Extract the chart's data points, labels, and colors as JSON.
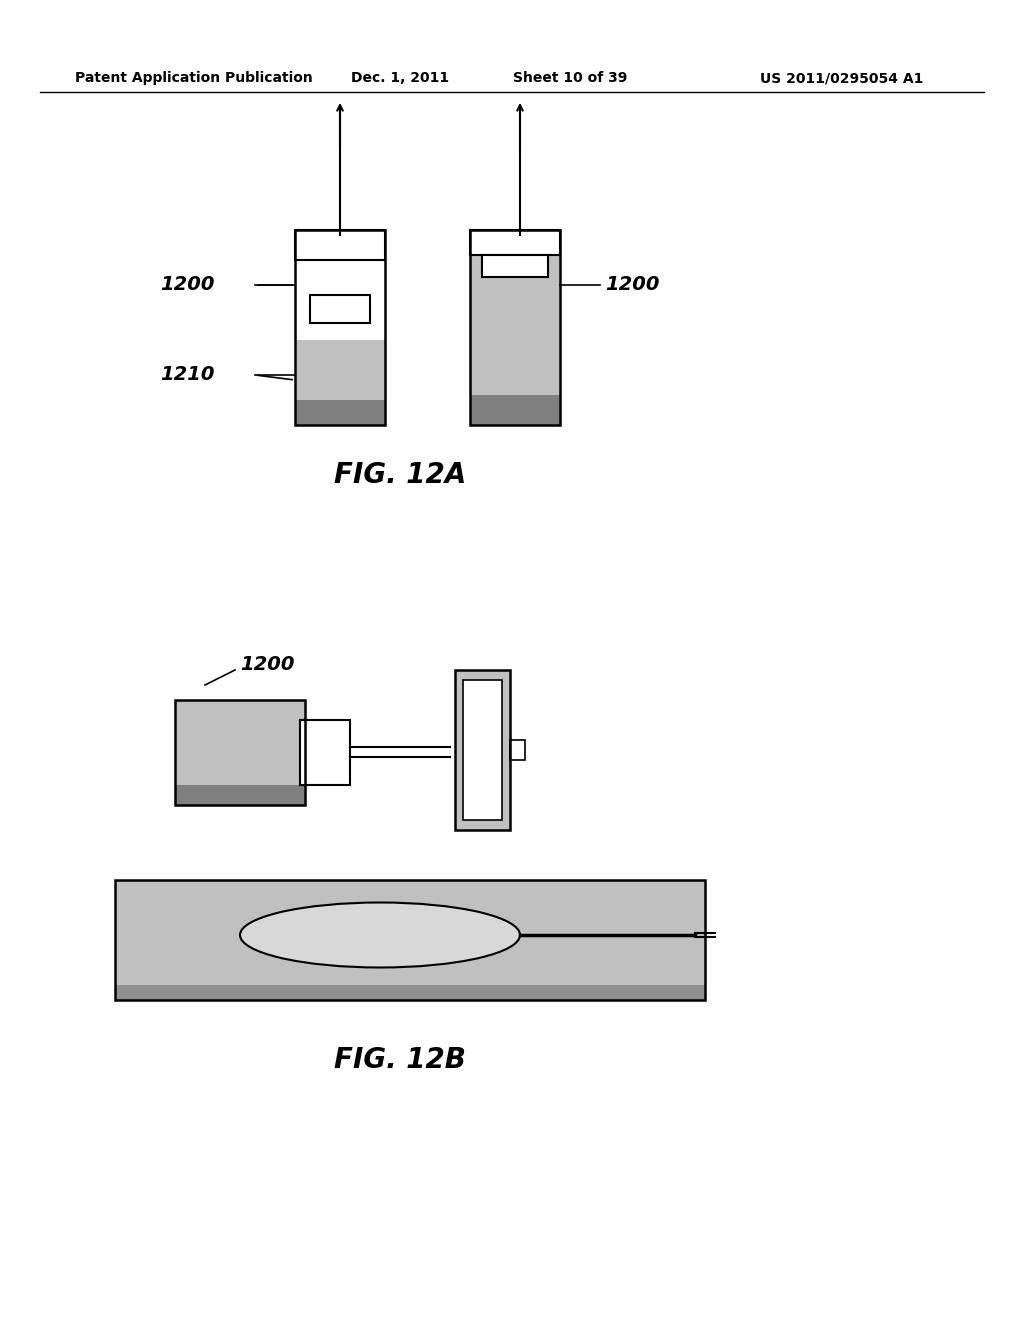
{
  "bg_color": "#ffffff",
  "header_text": "Patent Application Publication",
  "header_date": "Dec. 1, 2011",
  "header_sheet": "Sheet 10 of 39",
  "header_patent": "US 2011/0295054 A1",
  "fig12a_title": "FIG. 12A",
  "fig12b_title": "FIG. 12B",
  "label_1200": "1200",
  "label_1210": "1210",
  "stipple_color": "#b0b0b0",
  "outline_color": "#000000",
  "white_color": "#ffffff"
}
